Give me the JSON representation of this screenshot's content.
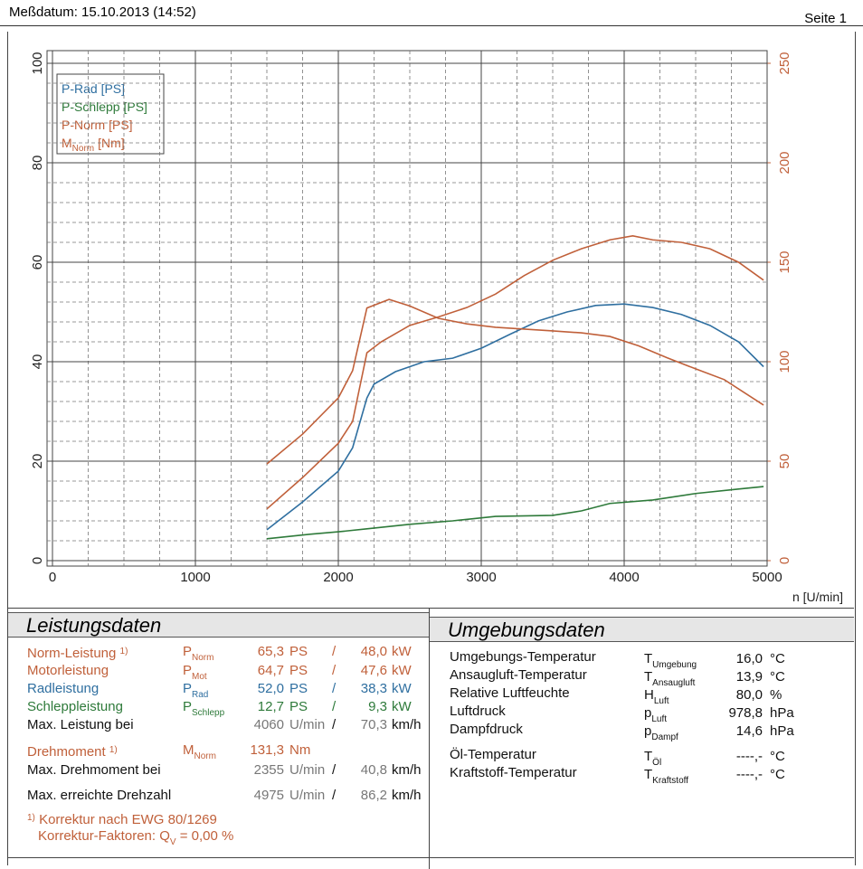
{
  "header": {
    "date": "Meßdatum: 15.10.2013 (14:52)",
    "page": "Seite 1"
  },
  "chart_data": {
    "type": "line",
    "xlabel": "n [U/min]",
    "xlim": [
      0,
      5000
    ],
    "xticks": [
      0,
      1000,
      2000,
      3000,
      4000,
      5000
    ],
    "ylim": [
      0,
      100
    ],
    "yticks": [
      0,
      20,
      40,
      60,
      80,
      100
    ],
    "y2lim": [
      0,
      250
    ],
    "y2ticks": [
      0,
      50,
      100,
      150,
      200,
      250
    ],
    "grid": true,
    "legend": "upper left",
    "series": [
      {
        "name": "P-Rad [PS]",
        "color": "#2f6fa0",
        "x": [
          1500,
          1750,
          2000,
          2100,
          2200,
          2250,
          2400,
          2600,
          2800,
          3000,
          3200,
          3400,
          3600,
          3800,
          4000,
          4200,
          4400,
          4600,
          4800,
          4975
        ],
        "values": [
          6.2,
          11.8,
          18,
          22.7,
          32.7,
          35.5,
          38,
          40,
          40.7,
          42.7,
          45.5,
          48.2,
          50,
          51.3,
          51.6,
          50.9,
          49.5,
          47.3,
          44,
          39
        ]
      },
      {
        "name": "P-Schlepp [PS]",
        "color": "#2e7a3a",
        "x": [
          1500,
          1800,
          2000,
          2200,
          2500,
          2800,
          3100,
          3500,
          3700,
          3900,
          4200,
          4500,
          4800,
          4975
        ],
        "values": [
          4.4,
          5.3,
          5.8,
          6.4,
          7.3,
          8,
          8.9,
          9.1,
          10,
          11.5,
          12.2,
          13.5,
          14.4,
          14.9
        ]
      },
      {
        "name": "P-Norm [PS]",
        "color": "#c0603a",
        "x": [
          1500,
          1750,
          2000,
          2100,
          2200,
          2300,
          2500,
          2700,
          2900,
          3100,
          3300,
          3500,
          3700,
          3900,
          4060,
          4200,
          4400,
          4600,
          4800,
          4975
        ],
        "values": [
          10.4,
          16.7,
          23.6,
          28,
          41.8,
          44,
          47.3,
          49,
          50.9,
          53.6,
          57.3,
          60.4,
          62.7,
          64.5,
          65.3,
          64.5,
          64,
          62.7,
          60,
          56.4
        ]
      },
      {
        "name": "M",
        "name_sub": "Norm",
        "name_unit": "[Nm]",
        "color": "#c0603a",
        "axis": "y2",
        "x": [
          1500,
          1750,
          2000,
          2100,
          2200,
          2355,
          2500,
          2700,
          2900,
          3100,
          3300,
          3500,
          3700,
          3900,
          4100,
          4300,
          4500,
          4700,
          4975
        ],
        "values": [
          48.6,
          63.6,
          81.8,
          95.5,
          127,
          131.3,
          128,
          121.8,
          119,
          117.3,
          116.4,
          115.5,
          114.5,
          112.7,
          108,
          102,
          96.4,
          91,
          78.2
        ]
      }
    ]
  },
  "performance": {
    "title": "Leistungsdaten",
    "rows": [
      {
        "label": "Norm-Leistung",
        "mark": "1)",
        "symbol": "P",
        "sub": "Norm",
        "v1": "65,3",
        "u1": "PS",
        "sep": "/",
        "v2": "48,0",
        "u2": "kW",
        "color": "#c0603a"
      },
      {
        "label": "Motorleistung",
        "symbol": "P",
        "sub": "Mot",
        "v1": "64,7",
        "u1": "PS",
        "sep": "/",
        "v2": "47,6",
        "u2": "kW",
        "color": "#c0603a"
      },
      {
        "label": "Radleistung",
        "symbol": "P",
        "sub": "Rad",
        "v1": "52,0",
        "u1": "PS",
        "sep": "/",
        "v2": "38,3",
        "u2": "kW",
        "color": "#2f6fa0"
      },
      {
        "label": "Schleppleistung",
        "symbol": "P",
        "sub": "Schlepp",
        "v1": "12,7",
        "u1": "PS",
        "sep": "/",
        "v2": "9,3",
        "u2": "kW",
        "color": "#2e7a3a"
      },
      {
        "label": "Max. Leistung bei",
        "v1": "4060",
        "u1": "U/min",
        "sep": "/",
        "v2": "70,3",
        "u2": "km/h",
        "color": "#111"
      },
      {
        "label": "Drehmoment",
        "mark": "1)",
        "symbol": "M",
        "sub": "Norm",
        "v1": "131,3",
        "u1": "Nm",
        "color": "#c0603a"
      },
      {
        "label": "Max. Drehmoment bei",
        "v1": "2355",
        "u1": "U/min",
        "sep": "/",
        "v2": "40,8",
        "u2": "km/h",
        "color": "#111"
      },
      {
        "label": "Max. erreichte Drehzahl",
        "v1": "4975",
        "u1": "U/min",
        "sep": "/",
        "v2": "86,2",
        "u2": "km/h",
        "color": "#111"
      }
    ],
    "footnote": {
      "mark": "1)",
      "text": "Korrektur nach EWG 80/1269"
    },
    "factor": {
      "label": "Korrektur-Faktoren: Q",
      "sub": "V",
      "eq": "=",
      "value": "0,00 %"
    }
  },
  "environment": {
    "title": "Umgebungsdaten",
    "rows": [
      {
        "label": "Umgebungs-Temperatur",
        "symbol": "T",
        "sub": "Umgebung",
        "value": "16,0",
        "unit": "°C"
      },
      {
        "label": "Ansaugluft-Temperatur",
        "symbol": "T",
        "sub": "Ansaugluft",
        "value": "13,9",
        "unit": "°C"
      },
      {
        "label": "Relative Luftfeuchte",
        "symbol": "H",
        "sub": "Luft",
        "value": "80,0",
        "unit": "%"
      },
      {
        "label": "Luftdruck",
        "symbol": "p",
        "sub": "Luft",
        "value": "978,8",
        "unit": "hPa"
      },
      {
        "label": "Dampfdruck",
        "symbol": "p",
        "sub": "Dampf",
        "value": "14,6",
        "unit": "hPa"
      },
      {
        "label": "Öl-Temperatur",
        "symbol": "T",
        "sub": "Öl",
        "value": "----,-",
        "unit": "°C"
      },
      {
        "label": "Kraftstoff-Temperatur",
        "symbol": "T",
        "sub": "Kraftstoff",
        "value": "----,-",
        "unit": "°C"
      }
    ]
  }
}
